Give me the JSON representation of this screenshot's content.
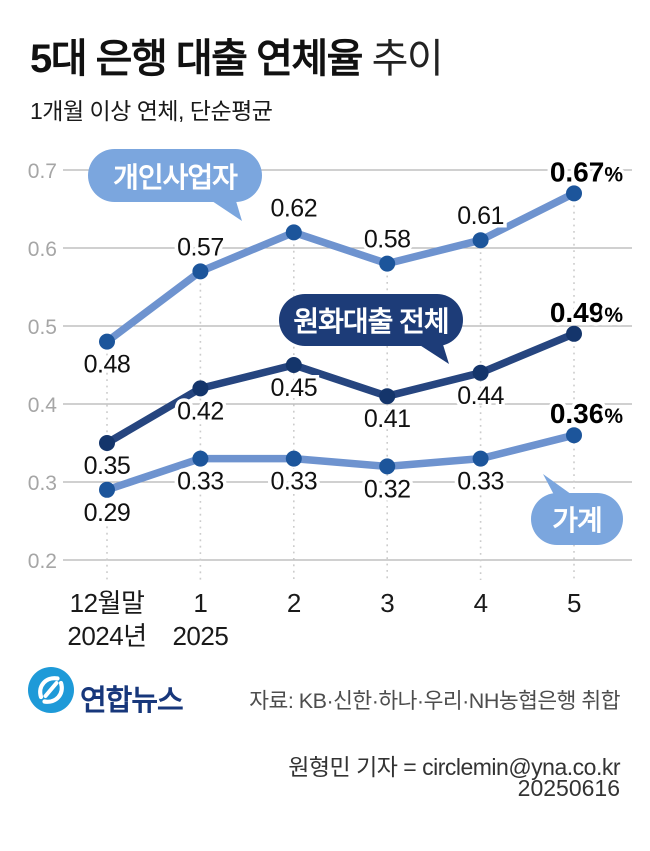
{
  "title": {
    "main": "5대 은행 대출 연체율",
    "suffix": " 추이"
  },
  "subtitle": "1개월 이상 연체, 단순평균",
  "chart_data": {
    "type": "line",
    "x": [
      "12월말",
      "1",
      "2",
      "3",
      "4",
      "5"
    ],
    "x_sub": [
      "2024년",
      "2025",
      "",
      "",
      "",
      ""
    ],
    "ylim": [
      0.2,
      0.7
    ],
    "y_ticks": [
      0.7,
      0.6,
      0.5,
      0.4,
      0.3,
      0.2
    ],
    "unit": "%",
    "grid": "horizontal-on",
    "legend_position": "bubbles-on-plot",
    "series": [
      {
        "name": "개인사업자",
        "values": [
          0.48,
          0.57,
          0.62,
          0.58,
          0.61,
          0.67
        ],
        "point_labels": [
          "0.48",
          "0.57",
          "0.62",
          "0.58",
          "0.61"
        ],
        "label_side": [
          "below",
          "above",
          "above",
          "above",
          "above"
        ],
        "end_label": "0.67",
        "palette": "light"
      },
      {
        "name": "원화대출 전체",
        "values": [
          0.35,
          0.42,
          0.45,
          0.41,
          0.44,
          0.49
        ],
        "point_labels": [
          "0.35",
          "0.42",
          "0.45",
          "0.41",
          "0.44"
        ],
        "label_side": [
          "below",
          "below",
          "below",
          "below",
          "below"
        ],
        "end_label": "0.49",
        "palette": "dark"
      },
      {
        "name": "가계",
        "values": [
          0.29,
          0.33,
          0.33,
          0.32,
          0.33,
          0.36
        ],
        "point_labels": [
          "0.29",
          "0.33",
          "0.33",
          "0.32",
          "0.33"
        ],
        "label_side": [
          "below",
          "below",
          "below",
          "below",
          "below"
        ],
        "end_label": "0.36",
        "palette": "light"
      }
    ],
    "colors": {
      "light_line": "#6e93cf",
      "dark_line": "#26457f",
      "light_dot": "#1c559b",
      "dark_dot": "#14356b",
      "bubble_light": "#7ba6de",
      "bubble_dark": "#1d3c78",
      "grid": "#b5b5b5",
      "dotted": "#cccccc",
      "tick_text": "#a6a6a6",
      "label_text": "#111111"
    }
  },
  "footer": {
    "agency": "연합뉴스",
    "source": "자료: KB·신한·하나·우리·NH농협은행 취합",
    "byline": "원형민 기자 = circlemin@yna.co.kr",
    "date": "20250616",
    "logo_blue": "#1e9ad8"
  }
}
